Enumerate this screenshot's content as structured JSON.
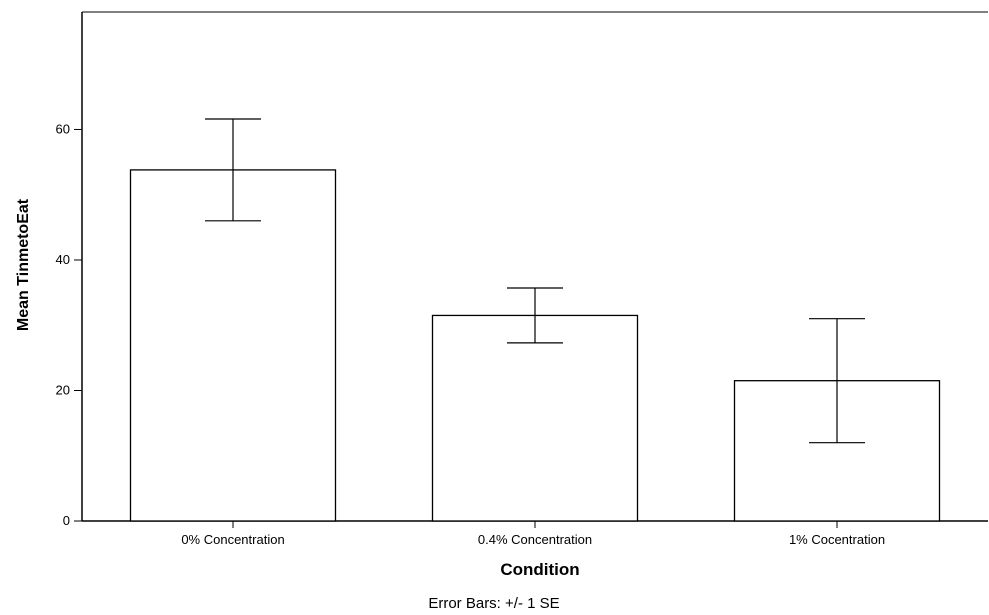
{
  "chart_data": {
    "type": "bar",
    "title": "",
    "xlabel": "Condition",
    "ylabel": "Mean TinmetoEat",
    "categories": [
      "0% Concentration",
      "0.4% Concentration",
      "1% Cocentration"
    ],
    "values": [
      53.8,
      31.5,
      21.5
    ],
    "error_bars": {
      "type": "+/- 1 SE",
      "lower": [
        46.0,
        27.3,
        12.0
      ],
      "upper": [
        61.6,
        35.7,
        31.0
      ]
    },
    "ylim": [
      0,
      78
    ],
    "yticks": [
      0,
      20,
      40,
      60
    ],
    "footnote": "Error Bars: +/- 1 SE",
    "bar_fill": "#ffffff",
    "bar_stroke": "#000000"
  }
}
